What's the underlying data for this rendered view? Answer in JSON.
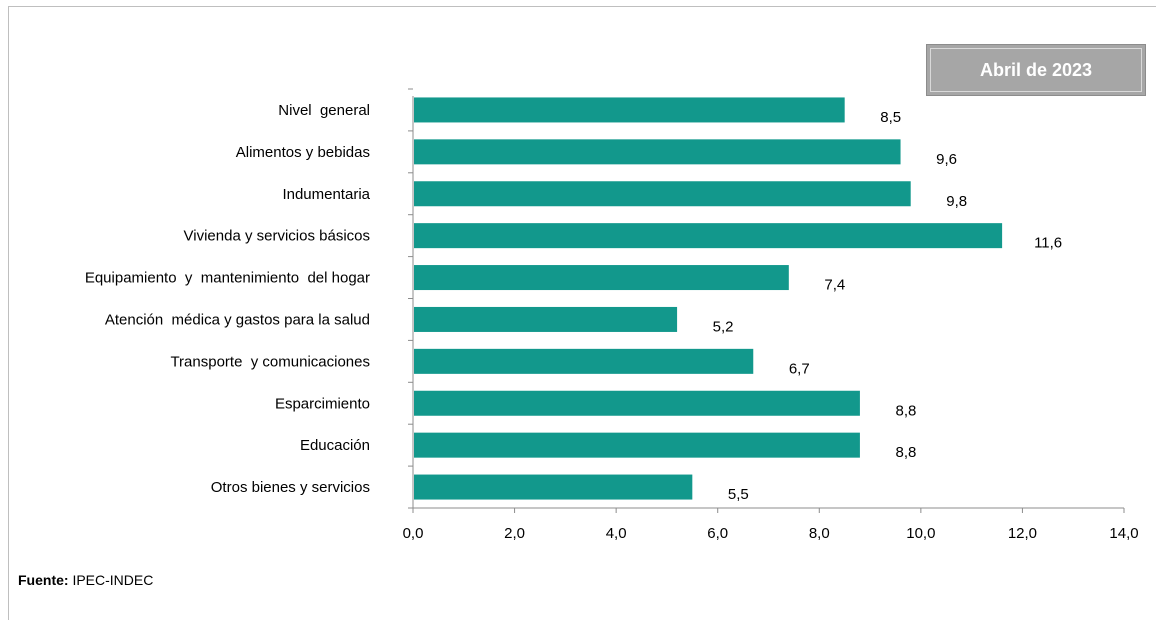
{
  "period_label": "Abril de 2023",
  "source": {
    "label": "Fuente:",
    "value": "IPEC-INDEC"
  },
  "colors": {
    "bar": "#12988c",
    "axis": "#8c8c8c",
    "badge": "#a6a6a6"
  },
  "chart_data": {
    "type": "bar",
    "orientation": "horizontal",
    "categories": [
      "Nivel  general",
      "Alimentos y bebidas",
      "Indumentaria",
      "Vivienda y servicios básicos",
      "Equipamiento  y  mantenimiento  del hogar",
      "Atención  médica y gastos para la salud",
      "Transporte  y comunicaciones",
      "Esparcimiento",
      "Educación",
      "Otros bienes y servicios"
    ],
    "values": [
      8.5,
      9.6,
      9.8,
      11.6,
      7.4,
      5.2,
      6.7,
      8.8,
      8.8,
      5.5
    ],
    "value_labels": [
      "8,5",
      "9,6",
      "9,8",
      "11,6",
      "7,4",
      "5,2",
      "6,7",
      "8,8",
      "8,8",
      "5,5"
    ],
    "xlim": [
      0,
      14
    ],
    "x_ticks": [
      0,
      2,
      4,
      6,
      8,
      10,
      12,
      14
    ],
    "x_tick_labels": [
      "0,0",
      "2,0",
      "4,0",
      "6,0",
      "8,0",
      "10,0",
      "12,0",
      "14,0"
    ],
    "grid": false,
    "legend": "none"
  }
}
